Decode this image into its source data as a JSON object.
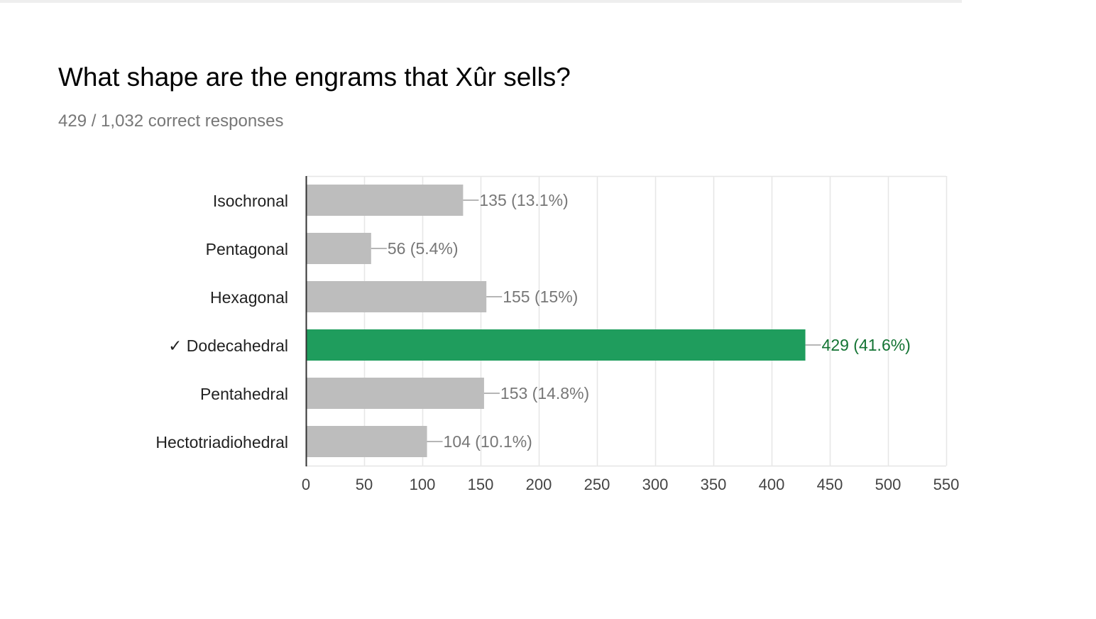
{
  "question": {
    "title": "What shape are the engrams that Xûr sells?",
    "summary": "429 / 1,032 correct responses"
  },
  "colors": {
    "bar_default": "#bdbdbd",
    "bar_correct": "#1f9d5d",
    "label_default": "#777777",
    "label_correct": "#137333",
    "category_label": "#222222",
    "gridline": "#e6e6e6",
    "axis": "#333333",
    "leader_line": "#9e9e9e"
  },
  "chart_data": {
    "type": "bar",
    "orientation": "horizontal",
    "categories": [
      "Isochronal",
      "Pentagonal",
      "Hexagonal",
      "✓ Dodecahedral",
      "Pentahedral",
      "Hectotriadiohedral"
    ],
    "values": [
      135,
      56,
      155,
      429,
      153,
      104
    ],
    "data_labels": [
      "135 (13.1%)",
      "56 (5.4%)",
      "155 (15%)",
      "429 (41.6%)",
      "153 (14.8%)",
      "104 (10.1%)"
    ],
    "correct_index": 3,
    "xlim": [
      0,
      550
    ],
    "x_ticks": [
      0,
      50,
      100,
      150,
      200,
      250,
      300,
      350,
      400,
      450,
      500,
      550
    ],
    "grid": true,
    "legend": "none"
  }
}
